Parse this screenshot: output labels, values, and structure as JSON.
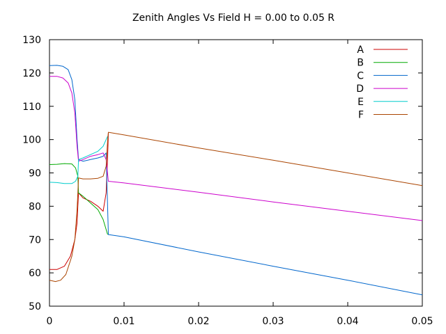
{
  "chart_data": {
    "type": "line",
    "title": "Zenith Angles Vs Field H = 0.00 to 0.05 R",
    "xlabel": "",
    "ylabel": "",
    "xlim": [
      0,
      0.05
    ],
    "ylim": [
      50,
      130
    ],
    "x_ticks": [
      "0",
      "0.01",
      "0.02",
      "0.03",
      "0.04",
      "0.05"
    ],
    "x_tick_values": [
      0,
      0.01,
      0.02,
      0.03,
      0.04,
      0.05
    ],
    "y_ticks": [
      "50",
      "60",
      "70",
      "80",
      "90",
      "100",
      "110",
      "120",
      "130"
    ],
    "y_tick_values": [
      50,
      60,
      70,
      80,
      90,
      100,
      110,
      120,
      130
    ],
    "grid": false,
    "legend_position": "top-right",
    "series": [
      {
        "name": "A",
        "color": "#cc0000",
        "x": [
          0,
          0.001,
          0.002,
          0.0028,
          0.0034,
          0.0037,
          0.0038,
          0.0039,
          0.0045,
          0.0055,
          0.0065,
          0.0072,
          0.0076,
          0.0078,
          0.0079
        ],
        "y": [
          61,
          61,
          62,
          65,
          70,
          75,
          80,
          84,
          82.5,
          81.5,
          80,
          78.5,
          84,
          95,
          102
        ]
      },
      {
        "name": "B",
        "color": "#00aa00",
        "x": [
          0,
          0.001,
          0.002,
          0.003,
          0.0035,
          0.0038,
          0.0039,
          0.0045,
          0.0055,
          0.0065,
          0.0072,
          0.0076,
          0.0078
        ],
        "y": [
          92.5,
          92.6,
          92.8,
          92.7,
          91.5,
          89,
          84,
          83,
          81,
          79,
          76,
          73,
          71.5
        ]
      },
      {
        "name": "C",
        "color": "#0066cc",
        "x": [
          0,
          0.001,
          0.0018,
          0.0025,
          0.003,
          0.0034,
          0.0037,
          0.0039,
          0.0045,
          0.0055,
          0.0065,
          0.0072,
          0.0076,
          0.0079,
          0.01,
          0.02,
          0.03,
          0.04,
          0.05
        ],
        "y": [
          122.2,
          122.3,
          122,
          121,
          118,
          112,
          100,
          94,
          93.5,
          94,
          94.5,
          95,
          96,
          71.5,
          70.8,
          66.3,
          62,
          57.8,
          53.4
        ]
      },
      {
        "name": "D",
        "color": "#cc00cc",
        "x": [
          0,
          0.001,
          0.0018,
          0.0025,
          0.003,
          0.0034,
          0.0037,
          0.0039,
          0.0045,
          0.0055,
          0.0065,
          0.0072,
          0.0076,
          0.0079,
          0.01,
          0.02,
          0.03,
          0.04,
          0.05
        ],
        "y": [
          119,
          119,
          118.5,
          117,
          114,
          108,
          98,
          93.5,
          94,
          95,
          95.5,
          96,
          94,
          87.5,
          87,
          84.2,
          81.3,
          78.5,
          75.7
        ]
      },
      {
        "name": "E",
        "color": "#00cccc",
        "x": [
          0,
          0.001,
          0.002,
          0.003,
          0.0035,
          0.0038,
          0.0039,
          0.0045,
          0.0055,
          0.0065,
          0.0072,
          0.0076,
          0.0078
        ],
        "y": [
          87.2,
          87.1,
          86.8,
          86.8,
          87.5,
          89,
          94,
          94.5,
          95.5,
          96.5,
          98,
          100,
          101
        ]
      },
      {
        "name": "F",
        "color": "#aa4400",
        "x": [
          0,
          0.0008,
          0.0015,
          0.0022,
          0.003,
          0.0034,
          0.0037,
          0.0039,
          0.0045,
          0.0055,
          0.0065,
          0.0072,
          0.0076,
          0.0078,
          0.0079,
          0.01,
          0.02,
          0.03,
          0.04,
          0.05
        ],
        "y": [
          57.8,
          57.4,
          57.8,
          59.5,
          65,
          70,
          79,
          88.5,
          88.2,
          88.2,
          88.4,
          89,
          92,
          100,
          102.2,
          101.4,
          97.5,
          93.8,
          90,
          86.2
        ]
      }
    ]
  }
}
